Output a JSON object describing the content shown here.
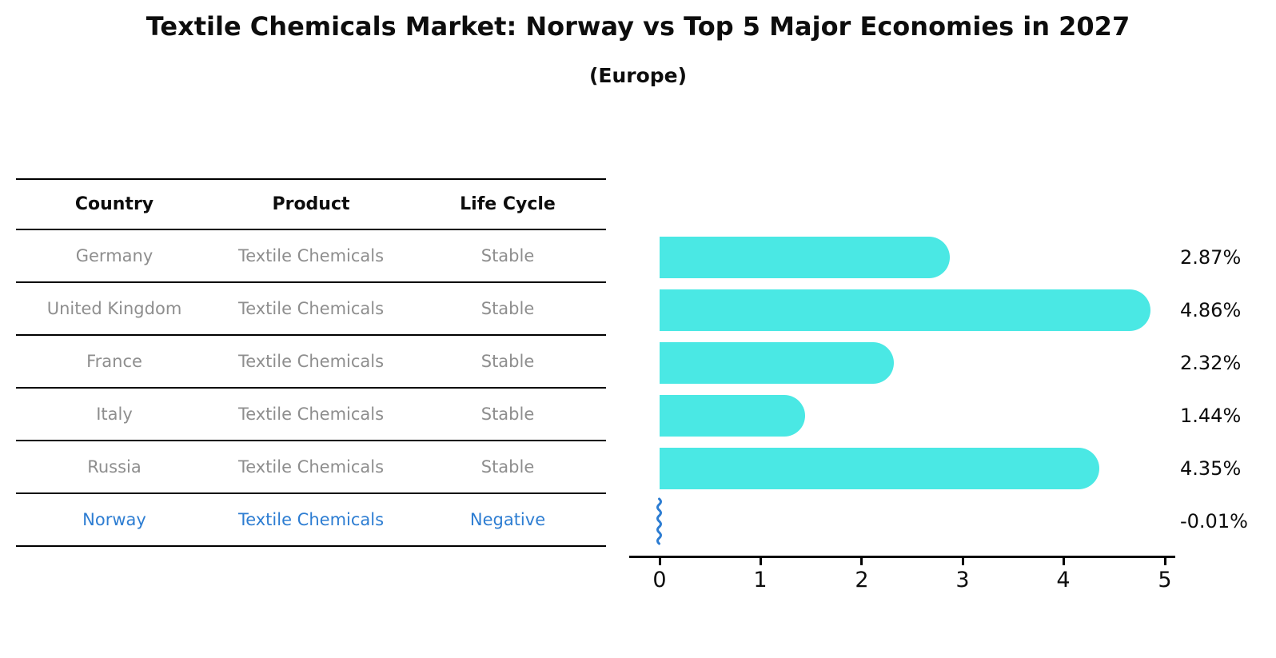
{
  "title": "Textile Chemicals Market: Norway vs Top 5 Major Economies in 2027",
  "subtitle": "(Europe)",
  "table": {
    "headers": [
      "Country",
      "Product",
      "Life Cycle"
    ],
    "rows": [
      {
        "country": "Germany",
        "product": "Textile Chemicals",
        "life_cycle": "Stable",
        "highlighted": false
      },
      {
        "country": "United Kingdom",
        "product": "Textile Chemicals",
        "life_cycle": "Stable",
        "highlighted": false
      },
      {
        "country": "France",
        "product": "Textile Chemicals",
        "life_cycle": "Stable",
        "highlighted": false
      },
      {
        "country": "Italy",
        "product": "Textile Chemicals",
        "life_cycle": "Stable",
        "highlighted": false
      },
      {
        "country": "Russia",
        "product": "Textile Chemicals",
        "life_cycle": "Stable",
        "highlighted": false
      },
      {
        "country": "Norway",
        "product": "Textile Chemicals",
        "life_cycle": "Negative",
        "highlighted": true
      }
    ]
  },
  "chart_data": {
    "type": "bar",
    "orientation": "horizontal",
    "title": "Textile Chemicals Market: Norway vs Top 5 Major Economies in 2027 (Europe)",
    "categories": [
      "Germany",
      "United Kingdom",
      "France",
      "Italy",
      "Russia",
      "Norway"
    ],
    "values": [
      2.87,
      4.86,
      2.32,
      1.44,
      4.35,
      -0.01
    ],
    "value_labels": [
      "2.87%",
      "4.86%",
      "2.32%",
      "1.44%",
      "4.35%",
      "-0.01%"
    ],
    "xlabel": "",
    "ylabel": "",
    "xlim": [
      0,
      5
    ],
    "xticks": [
      "0",
      "1",
      "2",
      "3",
      "4",
      "5"
    ],
    "grid": false,
    "legend_position": "none",
    "bar_color": "#4ae8e4",
    "highlight_color": "#2d7dd2"
  },
  "colors": {
    "bar_turquoise": "#4ae8e4",
    "norway_blue": "#2d7dd2",
    "muted_text": "#8e8e8e",
    "axis_black": "#000000",
    "background": "#ffffff"
  }
}
